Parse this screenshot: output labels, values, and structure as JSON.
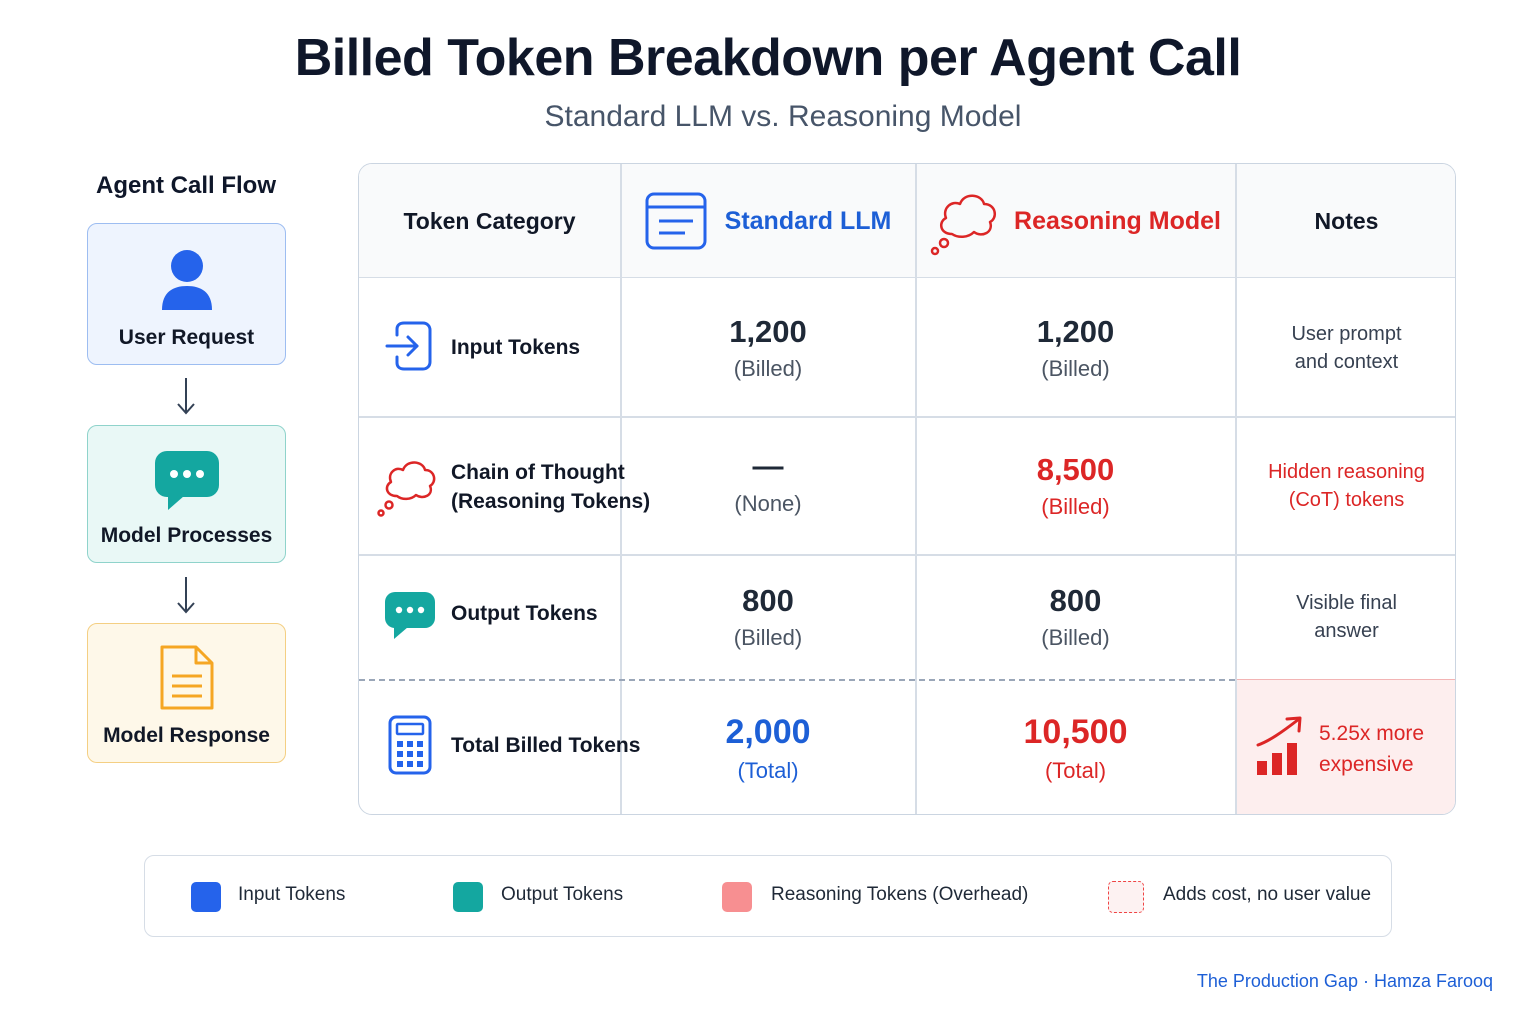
{
  "header": {
    "title": "Billed Token Breakdown per Agent Call",
    "subtitle": "Standard LLM vs. Reasoning Model"
  },
  "flow": {
    "title": "Agent Call Flow",
    "steps": [
      {
        "label": "User Request",
        "icon": "user-icon"
      },
      {
        "label": "Model Processes",
        "icon": "chat-bubble-icon"
      },
      {
        "label": "Model Response",
        "icon": "document-icon"
      }
    ]
  },
  "table": {
    "headers": {
      "category": "Token Category",
      "standard": "Standard LLM",
      "reasoning": "Reasoning Model",
      "notes": "Notes"
    },
    "rows": [
      {
        "label": "Input Tokens",
        "icon": "input-arrow-icon",
        "standard": {
          "value": "1,200",
          "sub": "(Billed)"
        },
        "reasoning": {
          "value": "1,200",
          "sub": "(Billed)"
        },
        "note_lines": [
          "User prompt",
          "and context"
        ]
      },
      {
        "label_lines": [
          "Chain of Thought",
          "(Reasoning Tokens)"
        ],
        "icon": "thought-cloud-icon",
        "standard": {
          "value": "—",
          "sub": "(None)"
        },
        "reasoning": {
          "value": "8,500",
          "sub": "(Billed)"
        },
        "note_lines": [
          "Hidden reasoning",
          "(CoT) tokens"
        ]
      },
      {
        "label": "Output Tokens",
        "icon": "chat-bubble-icon",
        "standard": {
          "value": "800",
          "sub": "(Billed)"
        },
        "reasoning": {
          "value": "800",
          "sub": "(Billed)"
        },
        "note_lines": [
          "Visible final",
          "answer"
        ]
      },
      {
        "label": "Total Billed Tokens",
        "icon": "calculator-icon",
        "standard": {
          "value": "2,000",
          "sub": "(Total)"
        },
        "reasoning": {
          "value": "10,500",
          "sub": "(Total)"
        },
        "note_lines": [
          "5.25x more",
          "expensive"
        ]
      }
    ]
  },
  "legend": [
    {
      "label": "Input Tokens",
      "color": "#2563eb"
    },
    {
      "label": "Output Tokens",
      "color": "#14a7a0"
    },
    {
      "label": "Reasoning Tokens (Overhead)",
      "color": "#f78f91"
    },
    {
      "label": "Adds cost, no user value",
      "color": "#ef4444"
    }
  ],
  "colors": {
    "blue": "#1d5fd6",
    "red": "#dc2626",
    "teal": "#14a7a0",
    "amber": "#f5a623"
  },
  "credit": "The Production Gap · Hamza Farooq"
}
